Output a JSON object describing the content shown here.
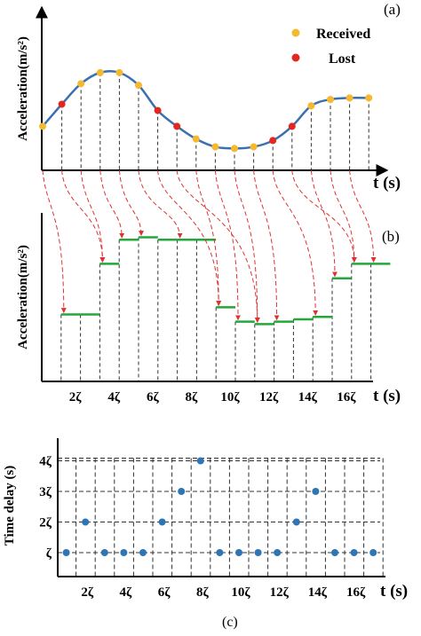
{
  "panel_a": {
    "label": "(a)",
    "ylabel": "Acceleration(m/s²)",
    "xlabel": "t (s)",
    "legend": {
      "received": "Received",
      "lost": "Lost"
    },
    "colors": {
      "curve": "#3a6fb0",
      "received": "#f5b82e",
      "lost": "#e2271f",
      "arrow": "#e03030"
    },
    "chart_data": {
      "type": "line",
      "x": [
        0,
        1,
        2,
        3,
        4,
        5,
        6,
        7,
        8,
        9,
        10,
        11,
        12,
        13,
        14,
        15,
        16,
        17
      ],
      "values": [
        2.0,
        3.4,
        4.7,
        5.4,
        5.4,
        4.6,
        3.0,
        2.0,
        1.2,
        0.7,
        0.6,
        0.7,
        1.1,
        2.0,
        3.3,
        3.7,
        3.8,
        3.8
      ],
      "status": [
        "received",
        "lost",
        "received",
        "received",
        "received",
        "received",
        "lost",
        "lost",
        "received",
        "received",
        "received",
        "received",
        "lost",
        "lost",
        "received",
        "received",
        "received",
        "received"
      ]
    }
  },
  "panel_b": {
    "label": "(b)",
    "ylabel": "Acceleration(m/s²)",
    "xlabel": "t (s)",
    "ticks": [
      "2ζ",
      "4ζ",
      "6ζ",
      "8ζ",
      "10ζ",
      "12ζ",
      "14ζ",
      "16ζ"
    ],
    "colors": {
      "step": "#22a83a",
      "arrow": "#e03030"
    },
    "chart_data": {
      "type": "line",
      "x": [
        1,
        2,
        3,
        4,
        5,
        6,
        7,
        8,
        9,
        10,
        11,
        12,
        13,
        14,
        15,
        16,
        17
      ],
      "values": [
        0.9,
        0.9,
        3.0,
        4.0,
        4.1,
        4.0,
        4.0,
        4.0,
        1.2,
        0.6,
        0.5,
        0.6,
        0.7,
        0.8,
        2.4,
        3.0,
        3.0
      ]
    }
  },
  "panel_c": {
    "label": "(c)",
    "ylabel": "Time delay (s)",
    "xlabel": "t (s)",
    "yticks": [
      "ζ",
      "2ζ",
      "3ζ",
      "4ζ"
    ],
    "xticks": [
      "2ζ",
      "4ζ",
      "6ζ",
      "8ζ",
      "10ζ",
      "12ζ",
      "14ζ",
      "16ζ"
    ],
    "colors": {
      "point": "#2e75b6"
    },
    "chart_data": {
      "type": "scatter",
      "x": [
        1,
        2,
        3,
        4,
        5,
        6,
        7,
        8,
        9,
        10,
        11,
        12,
        13,
        14,
        15,
        16,
        17
      ],
      "y": [
        1,
        2,
        1,
        1,
        1,
        2,
        3,
        4,
        1,
        1,
        1,
        1,
        2,
        3,
        1,
        1,
        1
      ]
    }
  }
}
